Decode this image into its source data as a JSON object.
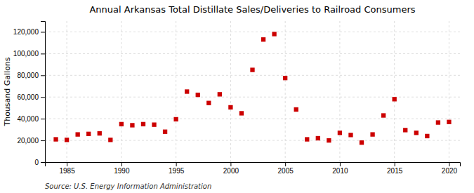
{
  "chart_data": {
    "type": "scatter",
    "title": "Annual Arkansas Total Distillate Sales/Deliveries to Railroad Consumers",
    "ylabel": "Thousand Gallons",
    "source": "Source: U.S. Energy Information Administration",
    "color": "#cc0000",
    "marker": "square",
    "grid": true,
    "xlim": [
      1983,
      2021
    ],
    "ylim": [
      0,
      130000
    ],
    "xticks": [
      1985,
      1990,
      1995,
      2000,
      2005,
      2010,
      2015,
      2020
    ],
    "yticks": [
      0,
      {
        "value": 20000,
        "label": "20,000"
      },
      {
        "value": 40000,
        "label": "40,000"
      },
      {
        "value": 60000,
        "label": "60,000"
      },
      {
        "value": 80000,
        "label": "80,000"
      },
      {
        "value": 100000,
        "label": "100,000"
      },
      {
        "value": 120000,
        "label": "120,000"
      }
    ],
    "x": [
      1984,
      1985,
      1986,
      1987,
      1988,
      1989,
      1990,
      1991,
      1992,
      1993,
      1994,
      1995,
      1996,
      1997,
      1998,
      1999,
      2000,
      2001,
      2002,
      2003,
      2004,
      2005,
      2006,
      2007,
      2008,
      2009,
      2010,
      2011,
      2012,
      2013,
      2014,
      2015,
      2016,
      2017,
      2018,
      2019,
      2020
    ],
    "values": [
      21000,
      20500,
      25500,
      26000,
      26500,
      20500,
      35000,
      34000,
      35000,
      34500,
      28000,
      39500,
      65000,
      62000,
      54500,
      62500,
      50500,
      45000,
      85000,
      113000,
      118000,
      77500,
      48500,
      21000,
      22000,
      20000,
      27000,
      25000,
      18000,
      25500,
      43000,
      58000,
      29500,
      27000,
      24000,
      36500,
      37000
    ]
  }
}
